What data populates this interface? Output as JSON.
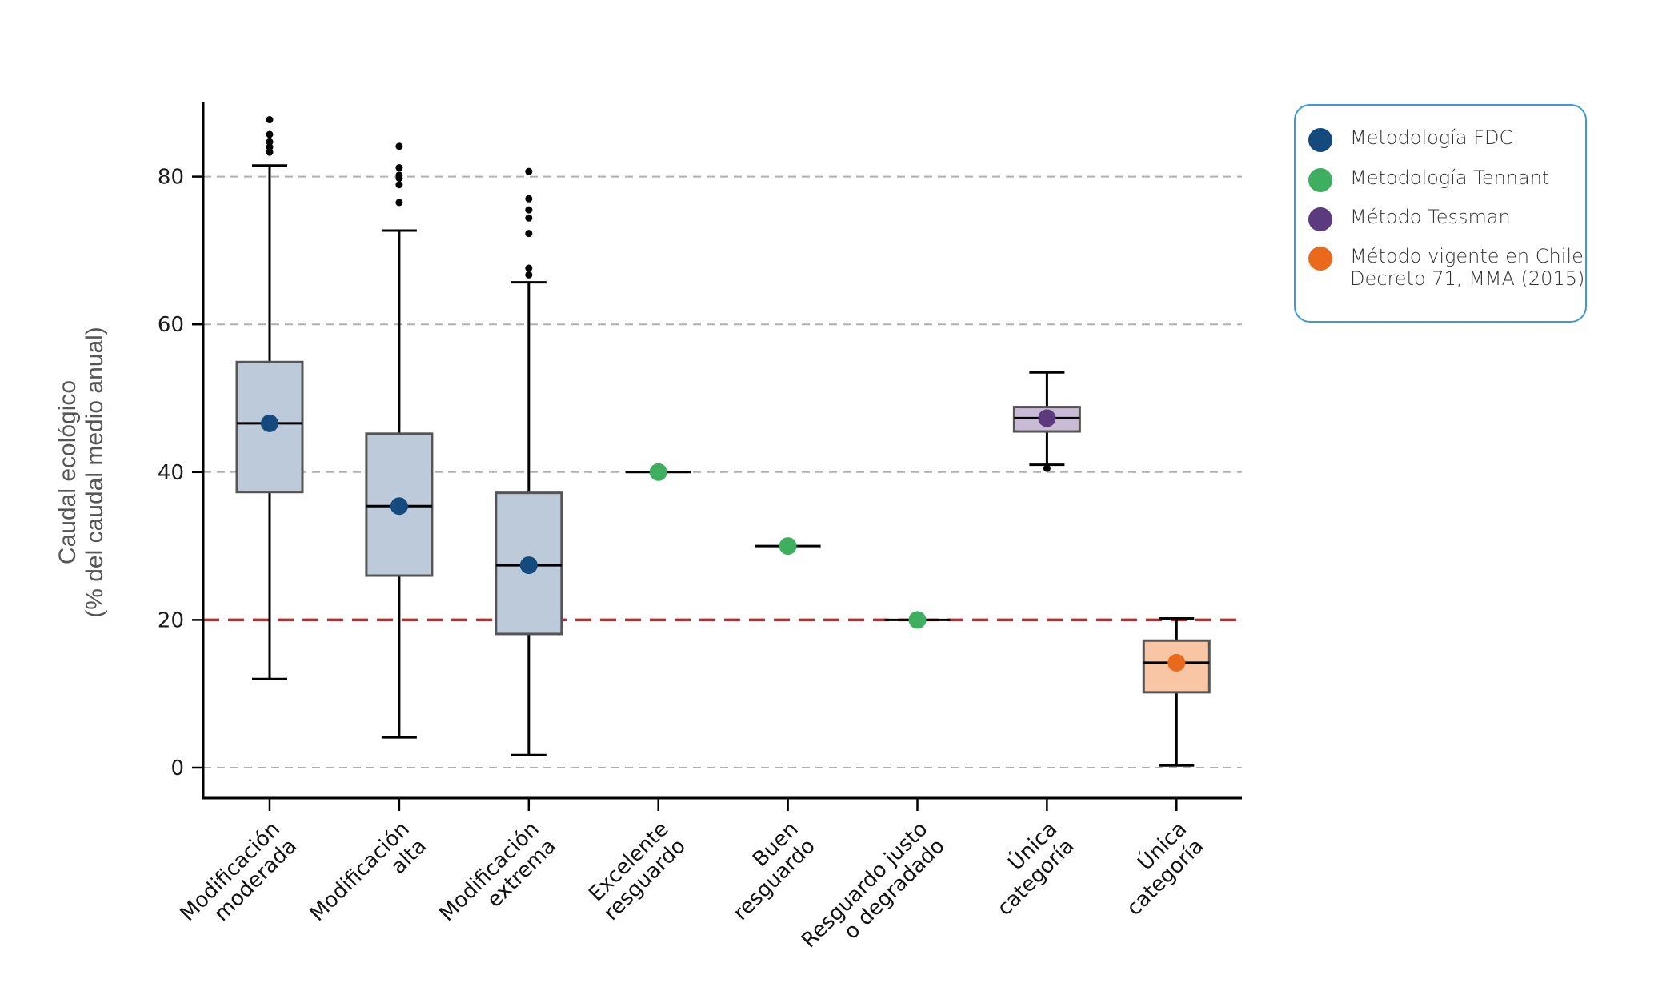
{
  "chart_data": {
    "type": "box",
    "title": "",
    "ylabel_lines": [
      "Caudal ecológico",
      "(% del caudal medio anual)"
    ],
    "xlabel": "",
    "ylim": [
      -4,
      91
    ],
    "yticks": [
      0,
      20,
      40,
      60,
      80
    ],
    "grid": "horizontal dashed at y ticks",
    "reference_line": {
      "y": 20,
      "color": "#c0272d",
      "style": "dashed"
    },
    "categories": [
      [
        "Modificación",
        "moderada"
      ],
      [
        "Modificación",
        "alta"
      ],
      [
        "Modificación",
        "extrema"
      ],
      [
        "Excelente",
        "resguardo"
      ],
      [
        "Buen",
        "resguardo"
      ],
      [
        "Resguardo justo",
        "o degradado"
      ],
      [
        "Única",
        "categoría"
      ],
      [
        "Única",
        "categoría"
      ]
    ],
    "boxes": [
      {
        "method": "fdc",
        "whisker_low": 12.0,
        "q1": 37.3,
        "median": 46.6,
        "q3": 54.9,
        "whisker_high": 81.5,
        "point": 46.6,
        "outliers": [
          83.3,
          84.0,
          84.7,
          85.7,
          87.7
        ]
      },
      {
        "method": "fdc",
        "whisker_low": 4.1,
        "q1": 26.0,
        "median": 35.4,
        "q3": 45.2,
        "whisker_high": 72.7,
        "point": 35.4,
        "outliers": [
          76.5,
          78.9,
          79.8,
          80.2,
          81.2,
          84.1
        ]
      },
      {
        "method": "fdc",
        "whisker_low": 1.7,
        "q1": 18.1,
        "median": 27.4,
        "q3": 37.2,
        "whisker_high": 65.7,
        "point": 27.4,
        "outliers": [
          66.7,
          67.6,
          72.3,
          74.4,
          75.5,
          77.0,
          80.7
        ]
      },
      {
        "method": "tennant",
        "whisker_low": 40,
        "q1": 40,
        "median": 40,
        "q3": 40,
        "whisker_high": 40,
        "point": 40,
        "outliers": []
      },
      {
        "method": "tennant",
        "whisker_low": 30,
        "q1": 30,
        "median": 30,
        "q3": 30,
        "whisker_high": 30,
        "point": 30,
        "outliers": []
      },
      {
        "method": "tennant",
        "whisker_low": 20,
        "q1": 20,
        "median": 20,
        "q3": 20,
        "whisker_high": 20,
        "point": 20,
        "outliers": []
      },
      {
        "method": "tessman",
        "whisker_low": 41.0,
        "q1": 45.5,
        "median": 47.3,
        "q3": 48.8,
        "whisker_high": 53.5,
        "point": 47.3,
        "outliers": [
          40.5
        ]
      },
      {
        "method": "chile",
        "whisker_low": 0.3,
        "q1": 10.2,
        "median": 14.2,
        "q3": 17.2,
        "whisker_high": 20.2,
        "point": 14.2,
        "outliers": []
      }
    ],
    "legend": {
      "placement": "top-right",
      "entries": [
        {
          "key": "fdc",
          "label": "Metodología  FDC"
        },
        {
          "key": "tennant",
          "label": "Metodología Tennant"
        },
        {
          "key": "tessman",
          "label": "Método Tessman"
        },
        {
          "key": "chile",
          "label": "Método vigente en Chile\nDecreto 71, MMA (2015)"
        }
      ]
    }
  },
  "colors": {
    "fdc": {
      "dot": "#154a7e",
      "fill": "#bccad9"
    },
    "tennant": {
      "dot": "#3daf5f",
      "fill": "#ffffff"
    },
    "tessman": {
      "dot": "#5b3a7e",
      "fill": "#c9bbd5"
    },
    "chile": {
      "dot": "#e96a1a",
      "fill": "#f8c6a4"
    },
    "box_stroke": "#555555",
    "grid": "#b0b0b0",
    "reference": "#c0272d",
    "legend_border": "#3a9bd5"
  }
}
